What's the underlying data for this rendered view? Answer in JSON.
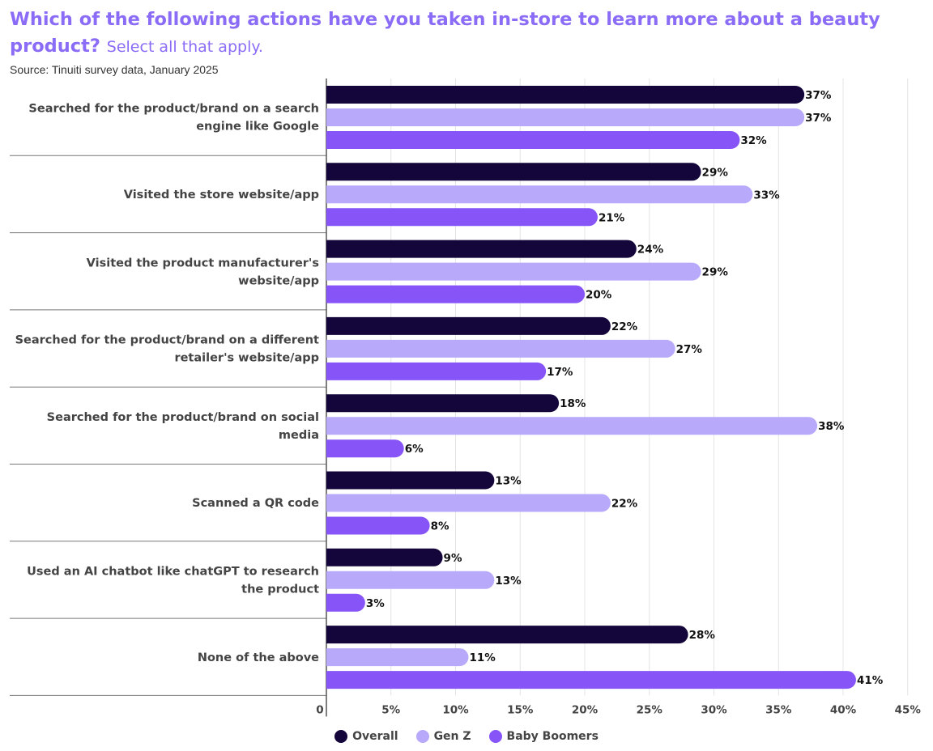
{
  "title": "Which of the following actions have you taken in-store to learn more about a beauty product?",
  "subtitle": "Select all that apply.",
  "source": "Source: Tinuiti survey data, January 2025",
  "colors": {
    "Overall": "#14053a",
    "Gen Z": "#b8a9fa",
    "Baby Boomers": "#8654f7"
  },
  "chart_data": {
    "type": "bar",
    "orientation": "horizontal",
    "categories": [
      "Searched for the product/brand on a search engine like Google",
      "Visited the store website/app",
      "Visited the product manufacturer's website/app",
      "Searched for the product/brand on a different retailer's website/app",
      "Searched for the product/brand on social media",
      "Scanned a QR code",
      "Used an AI chatbot like chatGPT to research the product",
      "None of the above"
    ],
    "series": [
      {
        "name": "Overall",
        "values": [
          37,
          29,
          24,
          22,
          18,
          13,
          9,
          28
        ]
      },
      {
        "name": "Gen Z",
        "values": [
          37,
          33,
          29,
          27,
          38,
          22,
          13,
          11
        ]
      },
      {
        "name": "Baby Boomers",
        "values": [
          32,
          21,
          20,
          17,
          6,
          8,
          3,
          41
        ]
      }
    ],
    "xlim": [
      0,
      45
    ],
    "xticks": [
      0,
      5,
      10,
      15,
      20,
      25,
      30,
      35,
      40,
      45
    ],
    "xtick_labels": [
      "0",
      "5%",
      "10%",
      "15%",
      "20%",
      "25%",
      "30%",
      "35%",
      "40%",
      "45%"
    ],
    "value_suffix": "%",
    "grid": true,
    "legend": "bottom-center"
  }
}
